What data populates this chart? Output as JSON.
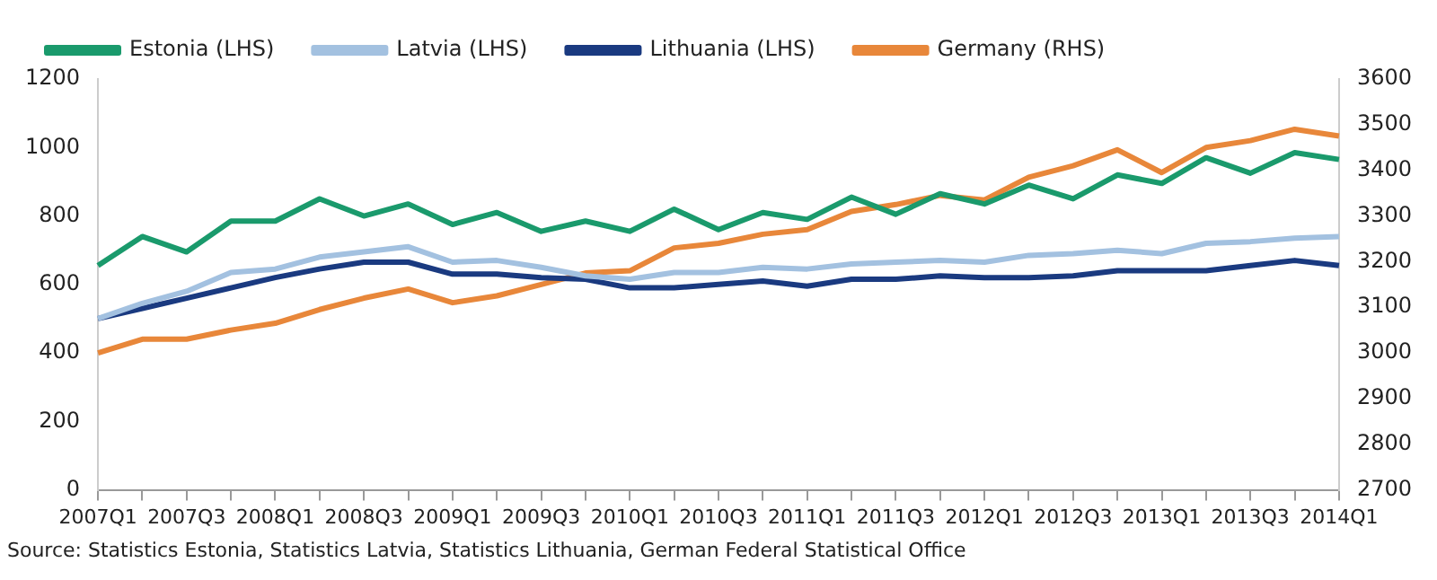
{
  "chart_data": {
    "type": "line",
    "categories": [
      "2007Q1",
      null,
      "2007Q3",
      null,
      "2008Q1",
      null,
      "2008Q3",
      null,
      "2009Q1",
      null,
      "2009Q3",
      null,
      "2010Q1",
      null,
      "2010Q3",
      null,
      "2011Q1",
      null,
      "2011Q3",
      null,
      "2012Q1",
      null,
      "2012Q3",
      null,
      "2013Q1",
      null,
      "2013Q3",
      null,
      "2014Q1"
    ],
    "series": [
      {
        "name": "Estonia (LHS)",
        "color": "#1a9a6c",
        "values": [
          655,
          740,
          695,
          785,
          785,
          850,
          800,
          835,
          775,
          810,
          755,
          785,
          755,
          820,
          760,
          810,
          790,
          855,
          805,
          865,
          835,
          890,
          850,
          920,
          895,
          970,
          925,
          985,
          965
        ]
      },
      {
        "name": "Latvia (LHS)",
        "color": "#a3c1e0",
        "values": [
          500,
          545,
          580,
          635,
          645,
          680,
          695,
          710,
          665,
          670,
          650,
          625,
          615,
          635,
          635,
          650,
          645,
          660,
          665,
          670,
          665,
          685,
          690,
          700,
          690,
          720,
          725,
          735,
          740
        ]
      },
      {
        "name": "Lithuania (LHS)",
        "color": "#1a3a80",
        "values": [
          500,
          530,
          560,
          590,
          620,
          645,
          665,
          665,
          630,
          630,
          620,
          615,
          590,
          590,
          600,
          610,
          595,
          615,
          615,
          625,
          620,
          620,
          625,
          640,
          640,
          640,
          655,
          670,
          655
        ]
      },
      {
        "name": "Germany (RHS)",
        "color": "#e8873a",
        "axis": "y2",
        "values": [
          3000,
          3030,
          3030,
          3050,
          3065,
          3095,
          3120,
          3140,
          3110,
          3125,
          3150,
          3175,
          3180,
          3230,
          3240,
          3260,
          3270,
          3310,
          3325,
          3345,
          3335,
          3385,
          3410,
          3445,
          3395,
          3450,
          3465,
          3490,
          3475
        ]
      }
    ],
    "ylim": [
      0,
      1200
    ],
    "yticks": [
      0,
      200,
      400,
      600,
      800,
      1000,
      1200
    ],
    "y2lim": [
      2700,
      3600
    ],
    "y2ticks": [
      2700,
      2800,
      2900,
      3000,
      3100,
      3200,
      3300,
      3400,
      3500,
      3600
    ],
    "grid": false,
    "legend": "top",
    "marker": "none",
    "line_style": "solid",
    "annotations": [
      "Source: Statistics Estonia, Statistics Latvia, Statistics Lithuania, German Federal Statistical Office"
    ]
  }
}
